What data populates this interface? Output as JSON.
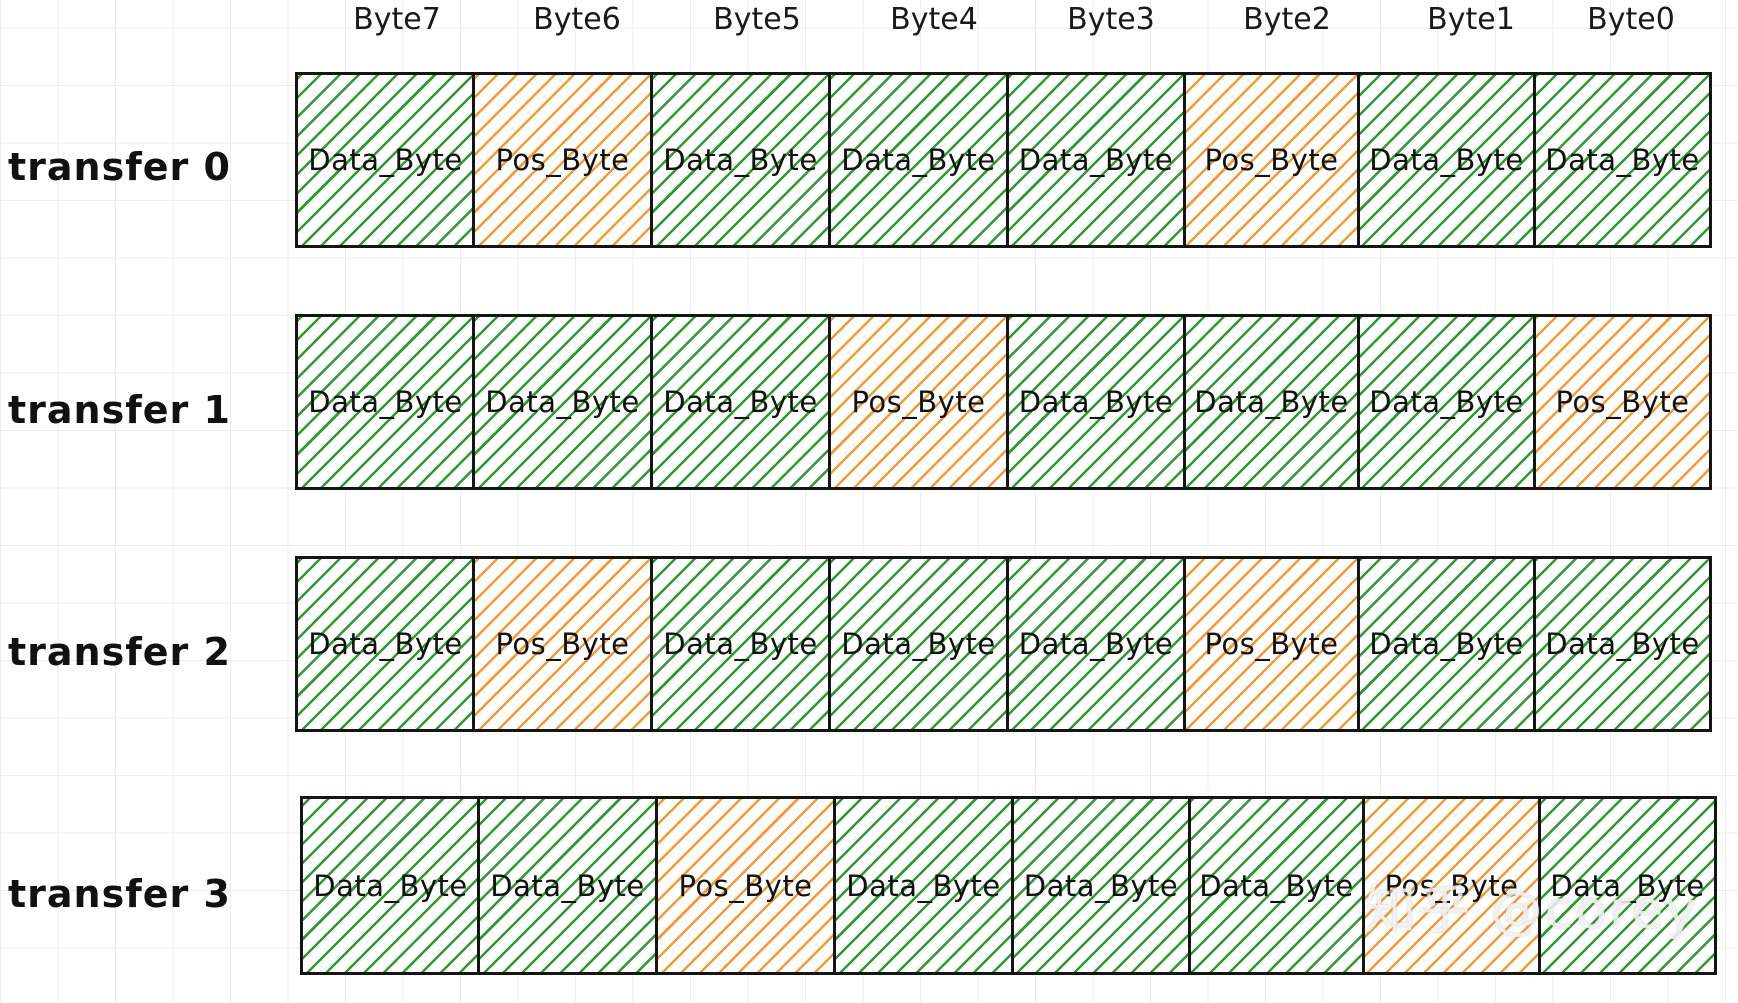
{
  "header": {
    "bytes": [
      "Byte7",
      "Byte6",
      "Byte5",
      "Byte4",
      "Byte3",
      "Byte2",
      "Byte1",
      "Byte0"
    ]
  },
  "transfers": [
    {
      "label": "transfer 0",
      "cells": [
        {
          "text": "Data_Byte",
          "kind": "data"
        },
        {
          "text": "Pos_Byte",
          "kind": "pos"
        },
        {
          "text": "Data_Byte",
          "kind": "data"
        },
        {
          "text": "Data_Byte",
          "kind": "data"
        },
        {
          "text": "Data_Byte",
          "kind": "data"
        },
        {
          "text": "Pos_Byte",
          "kind": "pos"
        },
        {
          "text": "Data_Byte",
          "kind": "data"
        },
        {
          "text": "Data_Byte",
          "kind": "data"
        }
      ]
    },
    {
      "label": "transfer 1",
      "cells": [
        {
          "text": "Data_Byte",
          "kind": "data"
        },
        {
          "text": "Data_Byte",
          "kind": "data"
        },
        {
          "text": "Data_Byte",
          "kind": "data"
        },
        {
          "text": "Pos_Byte",
          "kind": "pos"
        },
        {
          "text": "Data_Byte",
          "kind": "data"
        },
        {
          "text": "Data_Byte",
          "kind": "data"
        },
        {
          "text": "Data_Byte",
          "kind": "data"
        },
        {
          "text": "Pos_Byte",
          "kind": "pos"
        }
      ]
    },
    {
      "label": "transfer 2",
      "cells": [
        {
          "text": "Data_Byte",
          "kind": "data"
        },
        {
          "text": "Pos_Byte",
          "kind": "pos"
        },
        {
          "text": "Data_Byte",
          "kind": "data"
        },
        {
          "text": "Data_Byte",
          "kind": "data"
        },
        {
          "text": "Data_Byte",
          "kind": "data"
        },
        {
          "text": "Pos_Byte",
          "kind": "pos"
        },
        {
          "text": "Data_Byte",
          "kind": "data"
        },
        {
          "text": "Data_Byte",
          "kind": "data"
        }
      ]
    },
    {
      "label": "transfer 3",
      "cells": [
        {
          "text": "Data_Byte",
          "kind": "data"
        },
        {
          "text": "Data_Byte",
          "kind": "data"
        },
        {
          "text": "Pos_Byte",
          "kind": "pos"
        },
        {
          "text": "Data_Byte",
          "kind": "data"
        },
        {
          "text": "Data_Byte",
          "kind": "data"
        },
        {
          "text": "Data_Byte",
          "kind": "data"
        },
        {
          "text": "Pos_Byte",
          "kind": "pos"
        },
        {
          "text": "Data_Byte",
          "kind": "data"
        }
      ]
    }
  ],
  "colors": {
    "data_hatch": "#2f9a2f",
    "pos_hatch": "#f39a3a"
  },
  "watermark": "知乎 @corey"
}
